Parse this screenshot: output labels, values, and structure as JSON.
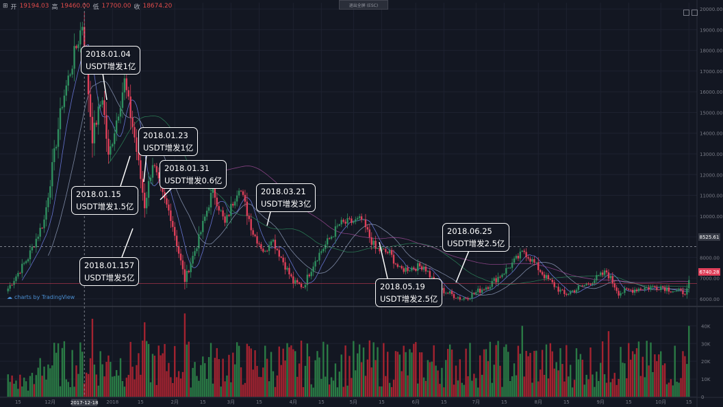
{
  "header": {
    "symbol_icon": "crosshair-icon",
    "open_label": "开",
    "open_value": "19194.03",
    "high_label": "高",
    "high_value": "19460.00",
    "low_label": "低",
    "low_value": "17700.00",
    "close_label": "收",
    "close_value": "18674.20",
    "fullscreen_label": "退出全屏 (ESC)"
  },
  "branding": {
    "text": "charts by TradingView"
  },
  "price_tags": {
    "crosshair_price": "8525.61",
    "last_price": "6740.28"
  },
  "date_tag": "2017-12-18",
  "colors": {
    "background": "#131722",
    "up": "#2f8f5f",
    "down": "#e0405a",
    "volume_up": "#2a7a45",
    "volume_down": "#a32330"
  },
  "annotations": [
    {
      "date": "2018.01.04",
      "text": "USDT增发1亿"
    },
    {
      "date": "2018.01.15",
      "text": "USDT增发1.5亿"
    },
    {
      "date": "2018.01.157",
      "text": "USDT增发5亿"
    },
    {
      "date": "2018.01.23",
      "text": "USDT增发1亿"
    },
    {
      "date": "2018.01.31",
      "text": "USDT增发0.6亿"
    },
    {
      "date": "2018.03.21",
      "text": "USDT增发3亿"
    },
    {
      "date": "2018.05.19",
      "text": "USDT增发2.5亿"
    },
    {
      "date": "2018.06.25",
      "text": "USDT增发2.5亿"
    }
  ],
  "chart_data": [
    {
      "type": "candlestick",
      "title": "",
      "y_ticks": [
        "20000.00",
        "19000.00",
        "18000.00",
        "17000.00",
        "16000.00",
        "15000.00",
        "14000.00",
        "13000.00",
        "12000.00",
        "11000.00",
        "10000.00",
        "9000.00",
        "8000.00",
        "7000.00",
        "6000.00"
      ],
      "ylim": [
        5700,
        20300
      ],
      "x_ticks": [
        "15",
        "12月",
        "2018",
        "15",
        "2月",
        "15",
        "3月",
        "15",
        "4月",
        "15",
        "5月",
        "15",
        "6月",
        "15",
        "7月",
        "15",
        "8月",
        "15",
        "9月",
        "15",
        "10月",
        "15"
      ],
      "anchors": [
        [
          "2017-11-10",
          6500
        ],
        [
          "2017-11-20",
          8000
        ],
        [
          "2017-11-28",
          9800
        ],
        [
          "2017-12-07",
          15500
        ],
        [
          "2017-12-17",
          19300
        ],
        [
          "2017-12-22",
          13800
        ],
        [
          "2017-12-27",
          15800
        ],
        [
          "2017-12-30",
          12800
        ],
        [
          "2018-01-07",
          16500
        ],
        [
          "2018-01-12",
          13800
        ],
        [
          "2018-01-17",
          10500
        ],
        [
          "2018-01-21",
          12600
        ],
        [
          "2018-01-25",
          11200
        ],
        [
          "2018-01-30",
          10000
        ],
        [
          "2018-02-06",
          6900
        ],
        [
          "2018-02-13",
          8900
        ],
        [
          "2018-02-20",
          11300
        ],
        [
          "2018-02-26",
          9600
        ],
        [
          "2018-03-05",
          11500
        ],
        [
          "2018-03-12",
          9200
        ],
        [
          "2018-03-18",
          8200
        ],
        [
          "2018-03-21",
          9000
        ],
        [
          "2018-04-01",
          6800
        ],
        [
          "2018-04-06",
          6600
        ],
        [
          "2018-04-12",
          7900
        ],
        [
          "2018-04-24",
          9600
        ],
        [
          "2018-05-05",
          9800
        ],
        [
          "2018-05-12",
          8400
        ],
        [
          "2018-05-19",
          8200
        ],
        [
          "2018-05-24",
          7400
        ],
        [
          "2018-06-05",
          7600
        ],
        [
          "2018-06-12",
          6500
        ],
        [
          "2018-06-24",
          6000
        ],
        [
          "2018-06-29",
          6200
        ],
        [
          "2018-07-08",
          6700
        ],
        [
          "2018-07-16",
          7400
        ],
        [
          "2018-07-25",
          8300
        ],
        [
          "2018-08-05",
          7000
        ],
        [
          "2018-08-14",
          6200
        ],
        [
          "2018-08-25",
          6700
        ],
        [
          "2018-09-04",
          7300
        ],
        [
          "2018-09-10",
          6300
        ],
        [
          "2018-09-20",
          6500
        ],
        [
          "2018-10-01",
          6600
        ],
        [
          "2018-10-11",
          6300
        ],
        [
          "2018-10-14",
          6400
        ],
        [
          "2018-10-15",
          6740
        ]
      ],
      "crosshair_price": 8525.61,
      "last_price": 6740.28
    },
    {
      "type": "bar",
      "title": "Volume",
      "y_ticks": [
        "40K",
        "30K",
        "20K",
        "10K",
        "0"
      ],
      "ylim": [
        0,
        44000
      ],
      "typical_range": [
        5000,
        32000
      ],
      "peaks": [
        [
          "2017-12-22",
          44000
        ],
        [
          "2018-01-17",
          42000
        ],
        [
          "2018-02-06",
          47000
        ],
        [
          "2018-07-24",
          40000
        ],
        [
          "2018-09-05",
          37000
        ],
        [
          "2018-10-15",
          40000
        ]
      ]
    }
  ]
}
